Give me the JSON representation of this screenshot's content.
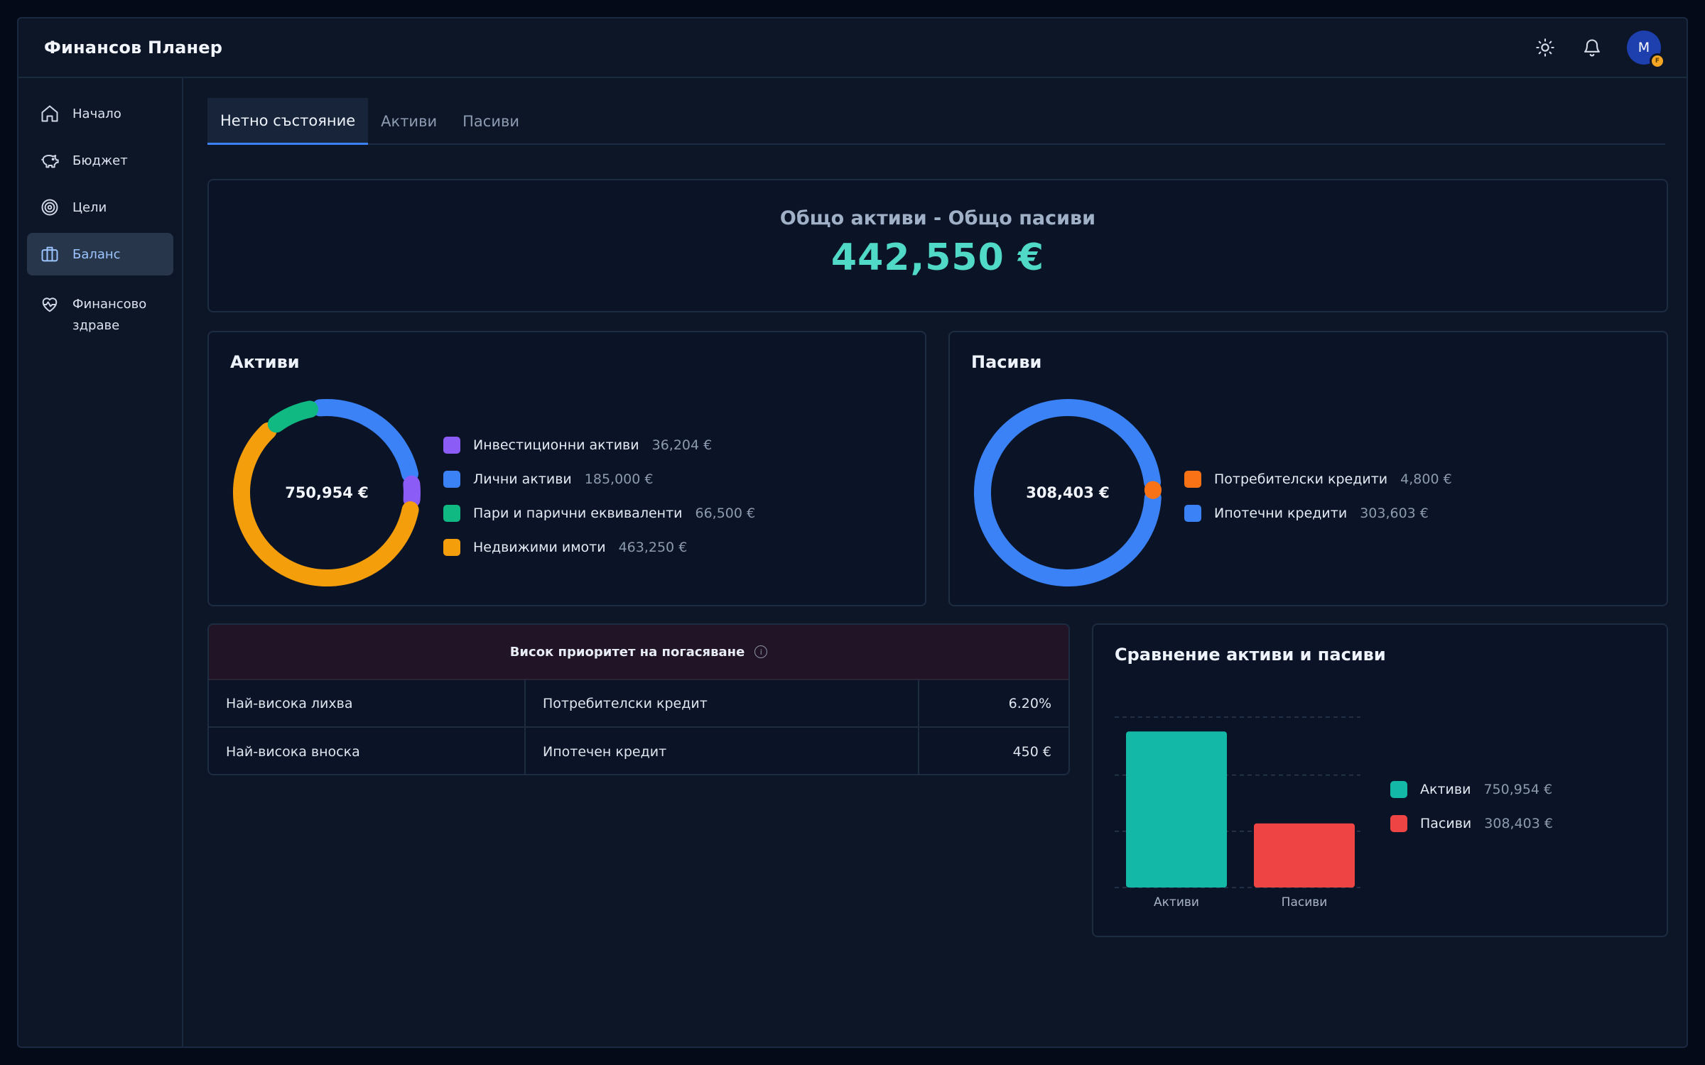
{
  "app": {
    "title": "Финансов Планер"
  },
  "header": {
    "avatar_initial": "M",
    "avatar_badge": "F",
    "icons": [
      "sun-icon",
      "bell-icon"
    ]
  },
  "sidebar": {
    "items": [
      {
        "label": "Начало",
        "icon": "home-icon"
      },
      {
        "label": "Бюджет",
        "icon": "piggy-bank-icon"
      },
      {
        "label": "Цели",
        "icon": "target-icon"
      },
      {
        "label": "Баланс",
        "icon": "briefcase-icon",
        "active": true
      },
      {
        "label_line1": "Финансово",
        "label_line2": "здраве",
        "icon": "heart-pulse-icon"
      }
    ]
  },
  "tabs": [
    {
      "label": "Нетно състояние",
      "active": true
    },
    {
      "label": "Активи"
    },
    {
      "label": "Пасиви"
    }
  ],
  "summary": {
    "label": "Общо активи - Общо пасиви",
    "value": "442,550 €",
    "color": "#4fd9c6"
  },
  "assets": {
    "title": "Активи",
    "total": "750,954 €",
    "items": [
      {
        "name": "Инвестиционни активи",
        "value": "36,204 €",
        "amount": 36204,
        "color": "#8b5cf6"
      },
      {
        "name": "Лични активи",
        "value": "185,000 €",
        "amount": 185000,
        "color": "#3b82f6"
      },
      {
        "name": "Пари и парични еквиваленти",
        "value": "66,500 €",
        "amount": 66500,
        "color": "#10b981"
      },
      {
        "name": "Недвижими имоти",
        "value": "463,250 €",
        "amount": 463250,
        "color": "#f59e0b"
      }
    ]
  },
  "liabilities": {
    "title": "Пасиви",
    "total": "308,403 €",
    "items": [
      {
        "name": "Потребителски кредити",
        "value": "4,800 €",
        "amount": 4800,
        "color": "#f97316"
      },
      {
        "name": "Ипотечни кредити",
        "value": "303,603 €",
        "amount": 303603,
        "color": "#3b82f6"
      }
    ]
  },
  "priority": {
    "title": "Висок приоритет на погасяване",
    "info_icon": "i",
    "rows": [
      {
        "label": "Най-висока лихва",
        "item": "Потребителски кредит",
        "value": "6.20%"
      },
      {
        "label": "Най-висока вноска",
        "item": "Ипотечен кредит",
        "value": "450 €"
      }
    ]
  },
  "comparison": {
    "title": "Сравнение активи и пасиви",
    "legend": [
      {
        "name": "Активи",
        "value": "750,954 €",
        "color": "#14b8a6"
      },
      {
        "name": "Пасиви",
        "value": "308,403 €",
        "color": "#ef4444"
      }
    ]
  },
  "chart_data": {
    "type": "bar",
    "title": "Сравнение активи и пасиви",
    "categories": [
      "Активи",
      "Пасиви"
    ],
    "values": [
      750954,
      308403
    ],
    "colors": [
      "#14b8a6",
      "#ef4444"
    ],
    "ylim": [
      0,
      820000
    ],
    "grid": true,
    "legend": "right"
  }
}
